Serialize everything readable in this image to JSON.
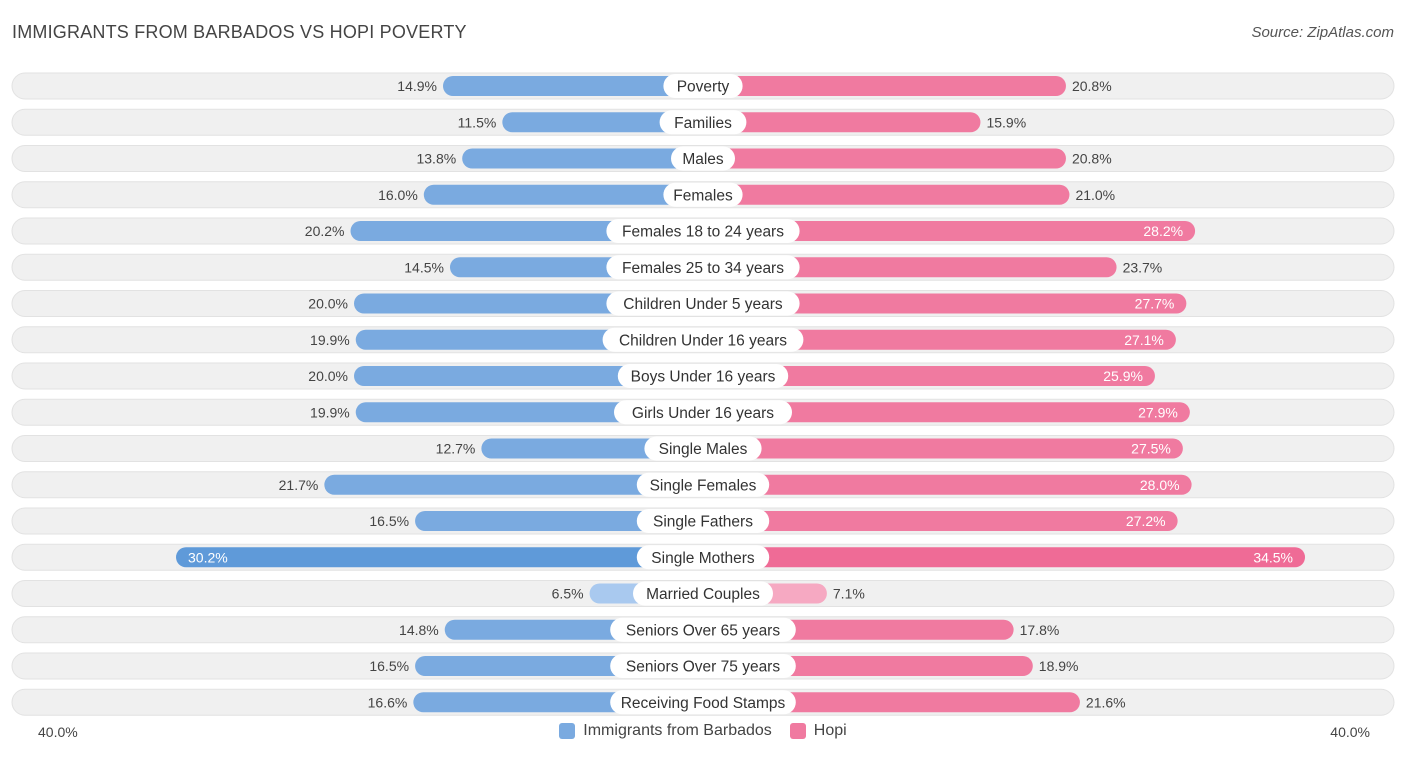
{
  "title": "IMMIGRANTS FROM BARBADOS VS HOPI POVERTY",
  "source": "Source: ZipAtlas.com",
  "colors": {
    "left_bar": "#7aaae0",
    "left_bar_strong": "#5f9ad9",
    "left_bar_light": "#a9c9ef",
    "right_bar": "#f07aa0",
    "right_bar_strong": "#ef6b96",
    "right_bar_light": "#f6a9c2",
    "row_bg": "#f0f0f0"
  },
  "legend": {
    "left": "Immigrants from Barbados",
    "right": "Hopi"
  },
  "axis": {
    "left_label": "40.0%",
    "right_label": "40.0%"
  },
  "chart_data": {
    "type": "bar",
    "orientation": "horizontal-diverging",
    "title": "IMMIGRANTS FROM BARBADOS VS HOPI POVERTY",
    "xlim": [
      -40,
      40
    ],
    "unit": "%",
    "categories": [
      "Poverty",
      "Families",
      "Males",
      "Females",
      "Females 18 to 24 years",
      "Females 25 to 34 years",
      "Children Under 5 years",
      "Children Under 16 years",
      "Boys Under 16 years",
      "Girls Under 16 years",
      "Single Males",
      "Single Females",
      "Single Fathers",
      "Single Mothers",
      "Married Couples",
      "Seniors Over 65 years",
      "Seniors Over 75 years",
      "Receiving Food Stamps"
    ],
    "series": [
      {
        "name": "Immigrants from Barbados",
        "values": [
          14.9,
          11.5,
          13.8,
          16.0,
          20.2,
          14.5,
          20.0,
          19.9,
          20.0,
          19.9,
          12.7,
          21.7,
          16.5,
          30.2,
          6.5,
          14.8,
          16.5,
          16.6
        ],
        "labels": [
          "14.9%",
          "11.5%",
          "13.8%",
          "16.0%",
          "20.2%",
          "14.5%",
          "20.0%",
          "19.9%",
          "20.0%",
          "19.9%",
          "12.7%",
          "21.7%",
          "16.5%",
          "30.2%",
          "6.5%",
          "14.8%",
          "16.5%",
          "16.6%"
        ]
      },
      {
        "name": "Hopi",
        "values": [
          20.8,
          15.9,
          20.8,
          21.0,
          28.2,
          23.7,
          27.7,
          27.1,
          25.9,
          27.9,
          27.5,
          28.0,
          27.2,
          34.5,
          7.1,
          17.8,
          18.9,
          21.6
        ],
        "labels": [
          "20.8%",
          "15.9%",
          "20.8%",
          "21.0%",
          "28.2%",
          "23.7%",
          "27.7%",
          "27.1%",
          "25.9%",
          "27.9%",
          "27.5%",
          "28.0%",
          "27.2%",
          "34.5%",
          "7.1%",
          "17.8%",
          "18.9%",
          "21.6%"
        ]
      }
    ]
  }
}
